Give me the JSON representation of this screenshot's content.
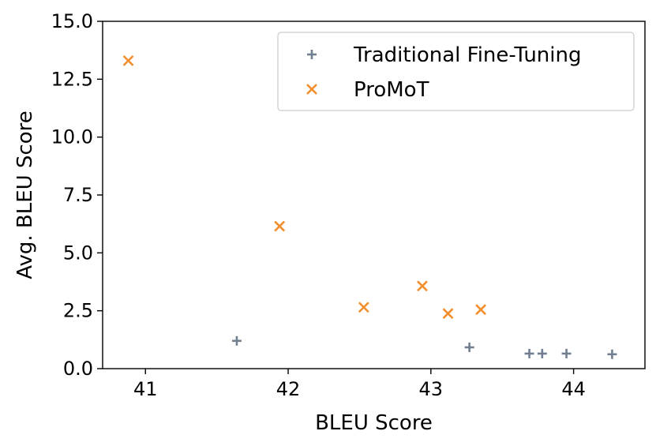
{
  "chart_data": {
    "type": "scatter",
    "title": "",
    "xlabel": "BLEU Score",
    "ylabel": "Avg. BLEU Score",
    "xlim": [
      40.7,
      44.5
    ],
    "ylim": [
      0.0,
      15.0
    ],
    "xticks": [
      41,
      42,
      43,
      44
    ],
    "yticks": [
      0.0,
      2.5,
      5.0,
      7.5,
      10.0,
      12.5,
      15.0
    ],
    "xtick_labels": [
      "41",
      "42",
      "43",
      "44"
    ],
    "ytick_labels": [
      "0.0",
      "2.5",
      "5.0",
      "7.5",
      "10.0",
      "12.5",
      "15.0"
    ],
    "grid": false,
    "legend_position": "top-right",
    "series": [
      {
        "name": "Traditional Fine-Tuning",
        "marker": "plus",
        "color": "#708090",
        "x": [
          41.64,
          43.27,
          43.69,
          43.78,
          43.95,
          44.27
        ],
        "y": [
          1.2,
          0.92,
          0.65,
          0.65,
          0.65,
          0.62
        ]
      },
      {
        "name": "ProMoT",
        "marker": "x",
        "color": "#F28E2B",
        "x": [
          40.88,
          41.94,
          42.53,
          42.94,
          43.12,
          43.35
        ],
        "y": [
          13.3,
          6.15,
          2.65,
          3.57,
          2.38,
          2.55
        ]
      }
    ]
  }
}
